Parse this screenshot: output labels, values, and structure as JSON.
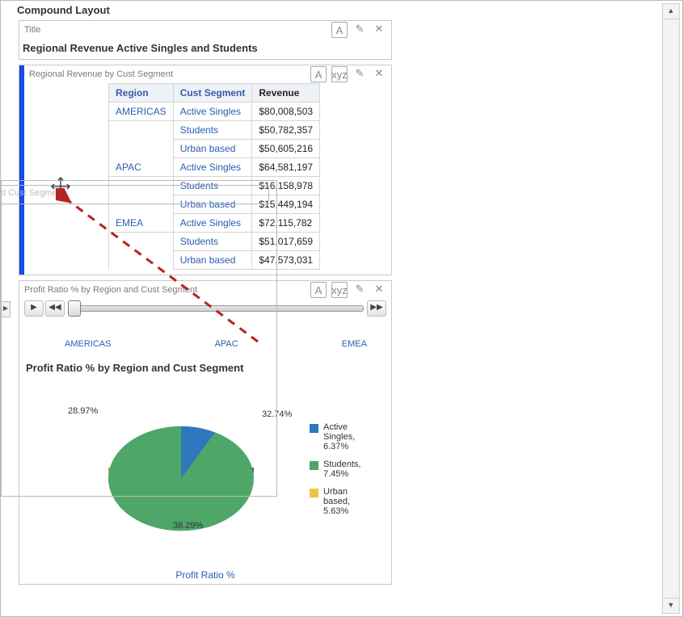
{
  "panel": {
    "title": "Compound Layout"
  },
  "title_view": {
    "header_label": "Title",
    "body_title": "Regional Revenue Active Singles and Students",
    "tool_a": "A",
    "tool_close": "✕"
  },
  "table_view": {
    "header_label": "Regional Revenue by Cust Segment",
    "tool_a": "A",
    "tool_xyz": "xyz",
    "col_region": "Region",
    "col_segment": "Cust Segment",
    "col_revenue": "Revenue",
    "rows": [
      {
        "region": "AMERICAS",
        "segment": "Active Singles",
        "revenue": "$80,008,503"
      },
      {
        "region": "",
        "segment": "Students",
        "revenue": "$50,782,357"
      },
      {
        "region": "",
        "segment": "Urban based",
        "revenue": "$50,605,216"
      },
      {
        "region": "APAC",
        "segment": "Active Singles",
        "revenue": "$64,581,197"
      },
      {
        "region": "",
        "segment": "Students",
        "revenue": "$16,158,978"
      },
      {
        "region": "",
        "segment": "Urban based",
        "revenue": "$15,449,194"
      },
      {
        "region": "EMEA",
        "segment": "Active Singles",
        "revenue": "$72,115,782"
      },
      {
        "region": "",
        "segment": "Students",
        "revenue": "$51,017,659"
      },
      {
        "region": "",
        "segment": "Urban based",
        "revenue": "$47,573,031"
      }
    ]
  },
  "chart_view": {
    "header_label": "Profit Ratio % by Region and Cust Segment",
    "tool_a": "A",
    "tool_xyz": "xyz",
    "slider": {
      "play": "▶",
      "rewind": "◀◀",
      "ffwd": "▶▶",
      "labels": [
        "AMERICAS",
        "APAC",
        "EMEA"
      ],
      "thumb_pct": 0
    },
    "chart_title": "Profit Ratio % by Region and Cust Segment",
    "footer_label": "Profit Ratio %",
    "pie": {
      "type": "pie",
      "slices": [
        {
          "label": "Active Singles",
          "pct": 32.74,
          "subpct": "6.37%",
          "color": "#2f78bd",
          "side_color": "#235c92"
        },
        {
          "label": "Students",
          "pct": 38.29,
          "subpct": "7.45%",
          "color": "#4ea668",
          "side_color": "#357b4b"
        },
        {
          "label": "Urban based",
          "pct": 28.97,
          "subpct": "5.63%",
          "color": "#eac543",
          "side_color": "#c9a322"
        }
      ],
      "label_tl": "28.97%",
      "label_tr": "32.74%",
      "label_b": "38.29%",
      "label_fontsize": 11,
      "background_color": "#ffffff"
    },
    "legend": [
      {
        "text": "Active Singles, 6.37%",
        "color": "#2f78bd"
      },
      {
        "text": "Students, 7.45%",
        "color": "#4ea668"
      },
      {
        "text": "Urban based, 5.63%",
        "color": "#eac543"
      }
    ]
  },
  "ghost": {
    "label": "d Cust Segment"
  },
  "colors": {
    "link": "#2a5db0",
    "header_bg": "#eef1f6",
    "grid_border": "#d4d4d4",
    "arrow": "#b32424"
  }
}
